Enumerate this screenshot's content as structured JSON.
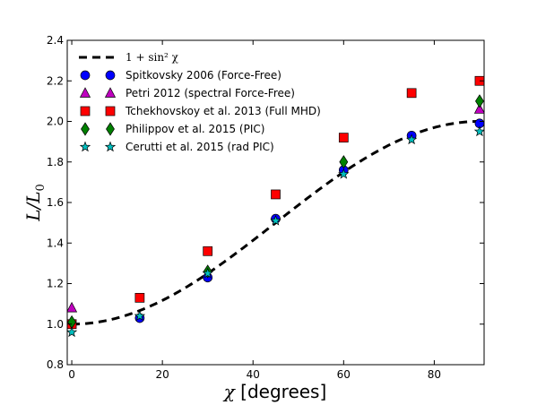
{
  "chart_data": {
    "type": "scatter",
    "title": "",
    "xlim": [
      -1,
      91
    ],
    "ylim": [
      0.8,
      2.4
    ],
    "xticks": [
      0,
      20,
      40,
      60,
      80
    ],
    "yticks": [
      0.8,
      1.0,
      1.2,
      1.4,
      1.6,
      1.8,
      2.0,
      2.2,
      2.4
    ],
    "xlabel": {
      "var": "χ",
      "unit": " [degrees]"
    },
    "ylabel": {
      "num": "L",
      "den": "L",
      "sub": "0"
    },
    "grid": false,
    "legend_position": "upper-left",
    "curve": {
      "name": "1 + sin² χ",
      "formula": "1 + sin^2(chi)",
      "style": "dashed",
      "color": "#000000"
    },
    "series": [
      {
        "name": "Spitkovsky 2006 (Force-Free)",
        "marker": "circle",
        "color": "#0000ff",
        "points": [
          [
            0,
            1.0
          ],
          [
            15,
            1.03
          ],
          [
            30,
            1.23
          ],
          [
            45,
            1.52
          ],
          [
            60,
            1.76
          ],
          [
            75,
            1.93
          ],
          [
            90,
            1.99
          ]
        ]
      },
      {
        "name": "Petri 2012 (spectral Force-Free)",
        "marker": "triangle",
        "color": "#bf00bf",
        "points": [
          [
            0,
            1.08
          ],
          [
            90,
            2.06
          ]
        ]
      },
      {
        "name": "Tchekhovskoy et al. 2013 (Full MHD)",
        "marker": "square",
        "color": "#ff0000",
        "points": [
          [
            0,
            1.0
          ],
          [
            15,
            1.13
          ],
          [
            30,
            1.36
          ],
          [
            45,
            1.64
          ],
          [
            60,
            1.92
          ],
          [
            75,
            2.14
          ],
          [
            90,
            2.2
          ]
        ]
      },
      {
        "name": "Philippov et al. 2015 (PIC)",
        "marker": "diamond",
        "color": "#008000",
        "points": [
          [
            0,
            1.01
          ],
          [
            30,
            1.26
          ],
          [
            60,
            1.8
          ],
          [
            90,
            2.1
          ]
        ]
      },
      {
        "name": "Cerutti et al. 2015 (rad PIC)",
        "marker": "star",
        "color": "#00bfbf",
        "points": [
          [
            0,
            0.96
          ],
          [
            15,
            1.04
          ],
          [
            30,
            1.25
          ],
          [
            45,
            1.51
          ],
          [
            60,
            1.74
          ],
          [
            75,
            1.91
          ],
          [
            90,
            1.95
          ]
        ]
      }
    ]
  }
}
